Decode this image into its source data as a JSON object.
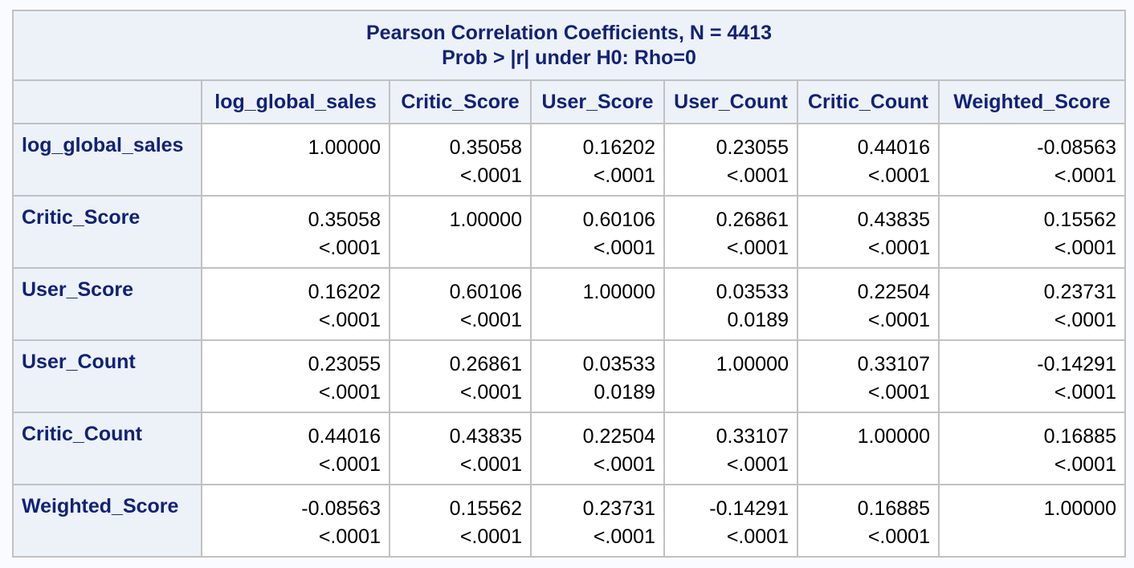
{
  "title_line1": "Pearson Correlation Coefficients, N = 4413",
  "title_line2": "Prob > |r| under H0: Rho=0",
  "columns": [
    "log_global_sales",
    "Critic_Score",
    "User_Score",
    "User_Count",
    "Critic_Count",
    "Weighted_Score"
  ],
  "rows": [
    {
      "label": "log_global_sales",
      "cells": [
        {
          "r": "1.00000",
          "p": ""
        },
        {
          "r": "0.35058",
          "p": "<.0001"
        },
        {
          "r": "0.16202",
          "p": "<.0001"
        },
        {
          "r": "0.23055",
          "p": "<.0001"
        },
        {
          "r": "0.44016",
          "p": "<.0001"
        },
        {
          "r": "-0.08563",
          "p": "<.0001"
        }
      ]
    },
    {
      "label": "Critic_Score",
      "cells": [
        {
          "r": "0.35058",
          "p": "<.0001"
        },
        {
          "r": "1.00000",
          "p": ""
        },
        {
          "r": "0.60106",
          "p": "<.0001"
        },
        {
          "r": "0.26861",
          "p": "<.0001"
        },
        {
          "r": "0.43835",
          "p": "<.0001"
        },
        {
          "r": "0.15562",
          "p": "<.0001"
        }
      ]
    },
    {
      "label": "User_Score",
      "cells": [
        {
          "r": "0.16202",
          "p": "<.0001"
        },
        {
          "r": "0.60106",
          "p": "<.0001"
        },
        {
          "r": "1.00000",
          "p": ""
        },
        {
          "r": "0.03533",
          "p": "0.0189"
        },
        {
          "r": "0.22504",
          "p": "<.0001"
        },
        {
          "r": "0.23731",
          "p": "<.0001"
        }
      ]
    },
    {
      "label": "User_Count",
      "cells": [
        {
          "r": "0.23055",
          "p": "<.0001"
        },
        {
          "r": "0.26861",
          "p": "<.0001"
        },
        {
          "r": "0.03533",
          "p": "0.0189"
        },
        {
          "r": "1.00000",
          "p": ""
        },
        {
          "r": "0.33107",
          "p": "<.0001"
        },
        {
          "r": "-0.14291",
          "p": "<.0001"
        }
      ]
    },
    {
      "label": "Critic_Count",
      "cells": [
        {
          "r": "0.44016",
          "p": "<.0001"
        },
        {
          "r": "0.43835",
          "p": "<.0001"
        },
        {
          "r": "0.22504",
          "p": "<.0001"
        },
        {
          "r": "0.33107",
          "p": "<.0001"
        },
        {
          "r": "1.00000",
          "p": ""
        },
        {
          "r": "0.16885",
          "p": "<.0001"
        }
      ]
    },
    {
      "label": "Weighted_Score",
      "cells": [
        {
          "r": "-0.08563",
          "p": "<.0001"
        },
        {
          "r": "0.15562",
          "p": "<.0001"
        },
        {
          "r": "0.23731",
          "p": "<.0001"
        },
        {
          "r": "-0.14291",
          "p": "<.0001"
        },
        {
          "r": "0.16885",
          "p": "<.0001"
        },
        {
          "r": "1.00000",
          "p": ""
        }
      ]
    }
  ],
  "colors": {
    "header_bg": "#edf2f9",
    "header_text": "#112277",
    "cell_bg": "#ffffff",
    "border": "#c1c1c1"
  }
}
